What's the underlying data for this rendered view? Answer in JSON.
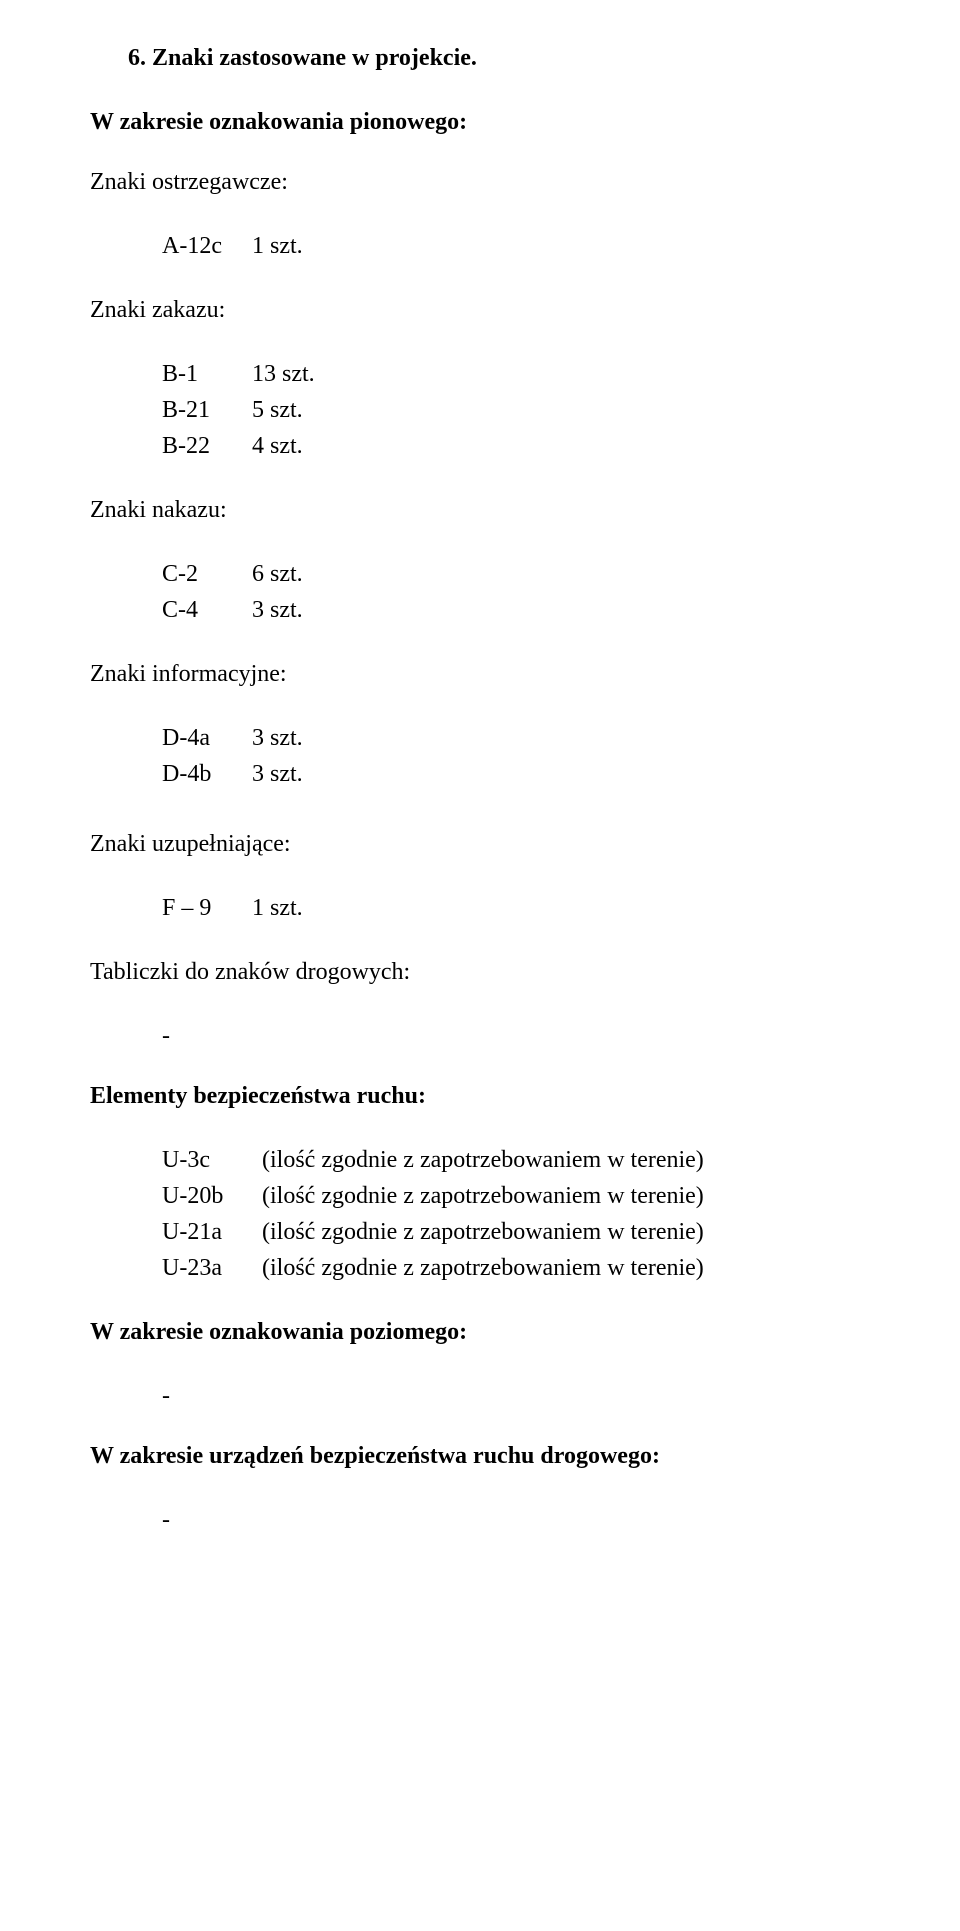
{
  "doc": {
    "title": "6. Znaki zastosowane w projekcie.",
    "vertical_heading": "W zakresie oznakowania pionowego:",
    "warning_heading": "Znaki ostrzegawcze:",
    "warning": [
      {
        "code": "A-12c",
        "qty": "1 szt."
      }
    ],
    "prohibit_heading": "Znaki zakazu:",
    "prohibit": [
      {
        "code": "B-1",
        "qty": "13 szt."
      },
      {
        "code": "B-21",
        "qty": "5 szt."
      },
      {
        "code": "B-22",
        "qty": "4 szt."
      }
    ],
    "order_heading": "Znaki nakazu:",
    "order": [
      {
        "code": "C-2",
        "qty": "6 szt."
      },
      {
        "code": "C-4",
        "qty": "3 szt."
      }
    ],
    "info_heading": "Znaki informacyjne:",
    "info": [
      {
        "code": "D-4a",
        "qty": "3 szt."
      },
      {
        "code": "D-4b",
        "qty": "3 szt."
      }
    ],
    "suppl_heading": "Znaki uzupełniające:",
    "suppl": [
      {
        "code": "F – 9",
        "qty": "1 szt."
      }
    ],
    "plates_heading": "Tabliczki do znaków drogowych:",
    "plates_dash": "-",
    "safety_heading": "Elementy bezpieczeństwa ruchu:",
    "safety": [
      {
        "code": "U-3c",
        "desc": "(ilość zgodnie z zapotrzebowaniem w terenie)"
      },
      {
        "code": "U-20b",
        "desc": "(ilość zgodnie z zapotrzebowaniem w terenie)"
      },
      {
        "code": "U-21a",
        "desc": "(ilość zgodnie z zapotrzebowaniem w terenie)"
      },
      {
        "code": "U-23a",
        "desc": "(ilość zgodnie z zapotrzebowaniem w terenie)"
      }
    ],
    "horizontal_heading": "W zakresie oznakowania poziomego:",
    "horizontal_dash": "-",
    "devices_heading": "W zakresie urządzeń bezpieczeństwa ruchu drogowego:",
    "devices_dash": "-"
  }
}
